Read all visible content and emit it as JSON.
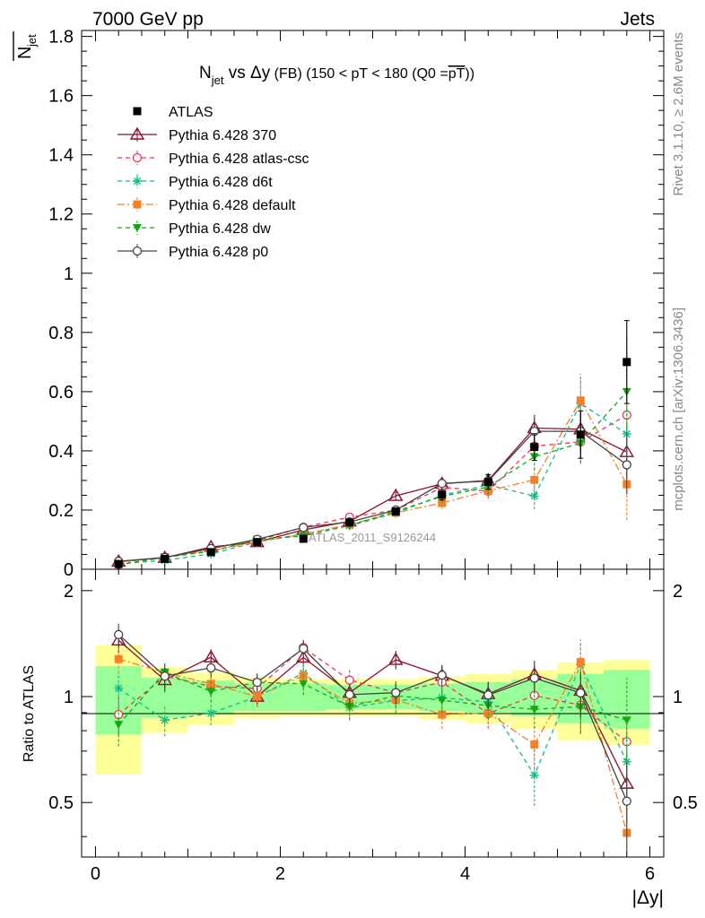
{
  "header": {
    "left": "7000 GeV pp",
    "right": "Jets",
    "right_vertical_top": "Rivet 3.1.10, ≥ 2.6M events",
    "right_vertical_bottom": "mcplots.cern.ch [arXiv:1306.3436]"
  },
  "chart_data": {
    "type": "line",
    "title": "N_jet vs Δy (FB) (150 < pT < 180 (Q0 = pT))",
    "title_parts": {
      "n": "N",
      "jet": "jet",
      "vs": " vs ",
      "dy": "Δy",
      "fb": " (FB)",
      "range": " (150 < pT < 180 (Q0 =",
      "pt": "pT",
      "close": "))"
    },
    "ylabel": "N_jet",
    "ylabel_parts": {
      "n": "N",
      "sub": "jet"
    },
    "xlabel": "|Δy|",
    "ratio_ylabel": "Ratio to ATLAS",
    "watermark": "ATLAS_2011_S9126244",
    "x": [
      0.25,
      0.75,
      1.25,
      1.75,
      2.25,
      2.75,
      3.25,
      3.75,
      4.25,
      4.75,
      5.25,
      5.75
    ],
    "xlim": [
      -0.15,
      6.15
    ],
    "ylim": [
      0,
      1.82
    ],
    "ratio_ylim": [
      0.35,
      2.3
    ],
    "x_ticks": [
      "0",
      "2",
      "4",
      "6"
    ],
    "y_ticks": [
      "0",
      "0.2",
      "0.4",
      "0.6",
      "0.8",
      "1",
      "1.2",
      "1.4",
      "1.6",
      "1.8"
    ],
    "ratio_ticks": [
      "0.5",
      "1",
      "2"
    ],
    "data": {
      "name": "ATLAS",
      "values": [
        0.018,
        0.035,
        0.058,
        0.092,
        0.103,
        0.158,
        0.195,
        0.252,
        0.295,
        0.413,
        0.455,
        0.7
      ],
      "errors": [
        0.004,
        0.004,
        0.005,
        0.006,
        0.007,
        0.01,
        0.012,
        0.018,
        0.025,
        0.045,
        0.08,
        0.14
      ],
      "band_inner": [
        0.22,
        0.13,
        0.11,
        0.09,
        0.09,
        0.08,
        0.08,
        0.09,
        0.1,
        0.12,
        0.16,
        0.19
      ],
      "band_outer": [
        0.4,
        0.21,
        0.17,
        0.13,
        0.12,
        0.12,
        0.12,
        0.14,
        0.16,
        0.19,
        0.25,
        0.27
      ]
    },
    "series": [
      {
        "name": "Pythia 6.428 370",
        "color": "#8b0f2a",
        "dash": "",
        "marker": "triangle-open",
        "values": [
          0.026,
          0.039,
          0.075,
          0.092,
          0.133,
          0.162,
          0.248,
          0.289,
          0.3,
          0.477,
          0.473,
          0.396
        ],
        "errors": [
          0.002,
          0.003,
          0.004,
          0.006,
          0.008,
          0.012,
          0.015,
          0.02,
          0.025,
          0.045,
          0.07,
          0.09
        ]
      },
      {
        "name": "Pythia 6.428 atlas-csc",
        "color": "#ee3355",
        "dash": "5,4",
        "marker": "circle-open",
        "values": [
          0.016,
          0.04,
          0.062,
          0.097,
          0.142,
          0.176,
          0.2,
          0.277,
          0.264,
          0.416,
          0.43,
          0.521
        ],
        "errors": [
          0.002,
          0.003,
          0.004,
          0.006,
          0.008,
          0.012,
          0.015,
          0.02,
          0.025,
          0.045,
          0.07,
          0.09
        ]
      },
      {
        "name": "Pythia 6.428 d6t",
        "color": "#10bb88",
        "dash": "5,4",
        "marker": "star",
        "values": [
          0.019,
          0.03,
          0.052,
          0.092,
          0.12,
          0.147,
          0.19,
          0.25,
          0.285,
          0.247,
          0.56,
          0.457
        ],
        "errors": [
          0.002,
          0.003,
          0.004,
          0.006,
          0.008,
          0.012,
          0.015,
          0.02,
          0.025,
          0.045,
          0.1,
          0.09
        ]
      },
      {
        "name": "Pythia 6.428 default",
        "color": "#f58025",
        "dash": "8,3,2,3",
        "marker": "square",
        "values": [
          0.023,
          0.041,
          0.063,
          0.092,
          0.118,
          0.151,
          0.191,
          0.224,
          0.265,
          0.302,
          0.57,
          0.287
        ],
        "errors": [
          0.002,
          0.003,
          0.004,
          0.006,
          0.008,
          0.012,
          0.015,
          0.02,
          0.025,
          0.045,
          0.07,
          0.12
        ]
      },
      {
        "name": "Pythia 6.428 dw",
        "color": "#11aa11",
        "dash": "5,4",
        "marker": "triangle-down",
        "values": [
          0.015,
          0.041,
          0.06,
          0.101,
          0.112,
          0.148,
          0.196,
          0.246,
          0.278,
          0.38,
          0.426,
          0.6
        ],
        "errors": [
          0.002,
          0.003,
          0.004,
          0.006,
          0.008,
          0.012,
          0.015,
          0.02,
          0.025,
          0.045,
          0.07,
          0.19
        ]
      },
      {
        "name": "Pythia 6.428 p0",
        "color": "#444444",
        "dash": "",
        "marker": "circle-open",
        "values": [
          0.027,
          0.04,
          0.07,
          0.101,
          0.141,
          0.16,
          0.2,
          0.29,
          0.298,
          0.466,
          0.466,
          0.353
        ],
        "errors": [
          0.002,
          0.003,
          0.004,
          0.006,
          0.008,
          0.012,
          0.015,
          0.02,
          0.025,
          0.045,
          0.07,
          0.1
        ]
      }
    ]
  }
}
